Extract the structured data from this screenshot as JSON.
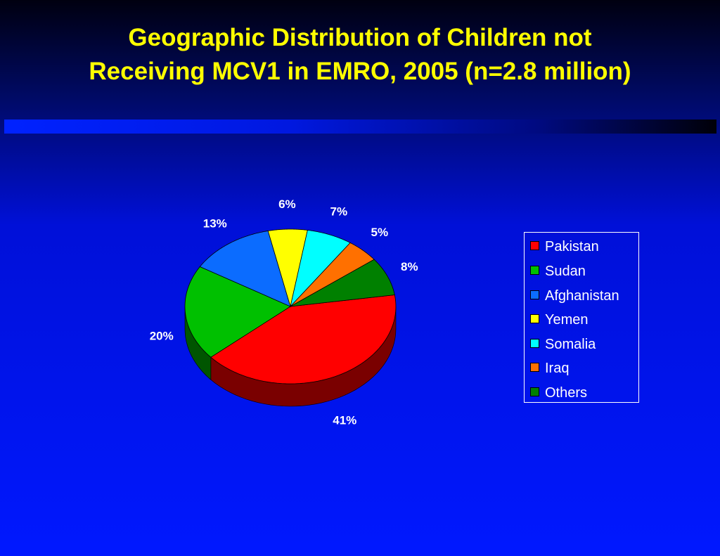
{
  "title": {
    "line1": "Geographic Distribution of Children not",
    "line2": "Receiving MCV1 in EMRO, 2005 (n=2.8 million)"
  },
  "chart_data": {
    "type": "pie",
    "title": "Geographic Distribution of Children not Receiving MCV1 in EMRO, 2005 (n=2.8 million)",
    "categories": [
      "Pakistan",
      "Sudan",
      "Afghanistan",
      "Yemen",
      "Somalia",
      "Iraq",
      "Others"
    ],
    "values": [
      41,
      20,
      13,
      6,
      7,
      5,
      8
    ],
    "labels": [
      "41%",
      "20%",
      "13%",
      "6%",
      "7%",
      "5%",
      "8%"
    ],
    "colors": [
      "#ff0000",
      "#00c000",
      "#0b6cff",
      "#ffff00",
      "#00ffff",
      "#ff7000",
      "#008000"
    ],
    "side_colors": [
      "#7a0000",
      "#005500",
      "#04307a",
      "#7a7a00",
      "#007a7a",
      "#7a3400",
      "#003c00"
    ],
    "legend_position": "right",
    "three_d": true
  }
}
